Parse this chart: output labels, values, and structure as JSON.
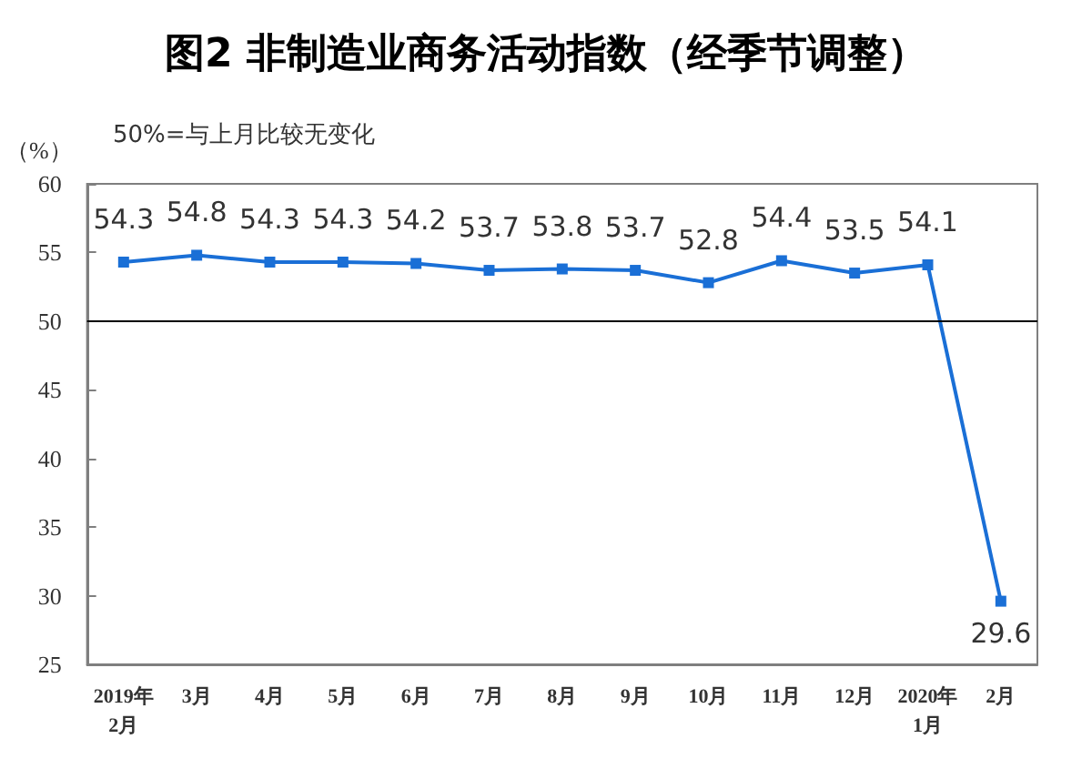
{
  "chart_data": {
    "type": "line",
    "title": "图2 非制造业商务活动指数（经季节调整）",
    "ylabel": "（%）",
    "annotations": [
      "50%=与上月比较无变化"
    ],
    "categories": [
      "2019年\n2月",
      "3月",
      "4月",
      "5月",
      "6月",
      "7月",
      "8月",
      "9月",
      "10月",
      "11月",
      "12月",
      "2020年\n1月",
      "2月"
    ],
    "series": [
      {
        "color": "#1a6fd6",
        "values": [
          54.3,
          54.8,
          54.3,
          54.3,
          54.2,
          53.7,
          53.8,
          53.7,
          52.8,
          54.4,
          53.5,
          54.1,
          29.6
        ]
      }
    ],
    "ylim": [
      25,
      60
    ],
    "yticks": [
      25,
      30,
      35,
      40,
      45,
      50,
      55,
      60
    ],
    "ref_lines": [
      {
        "axis": "y",
        "value": 50,
        "color": "#000000"
      }
    ],
    "data_labels": true,
    "marker": "square",
    "grid": false
  }
}
